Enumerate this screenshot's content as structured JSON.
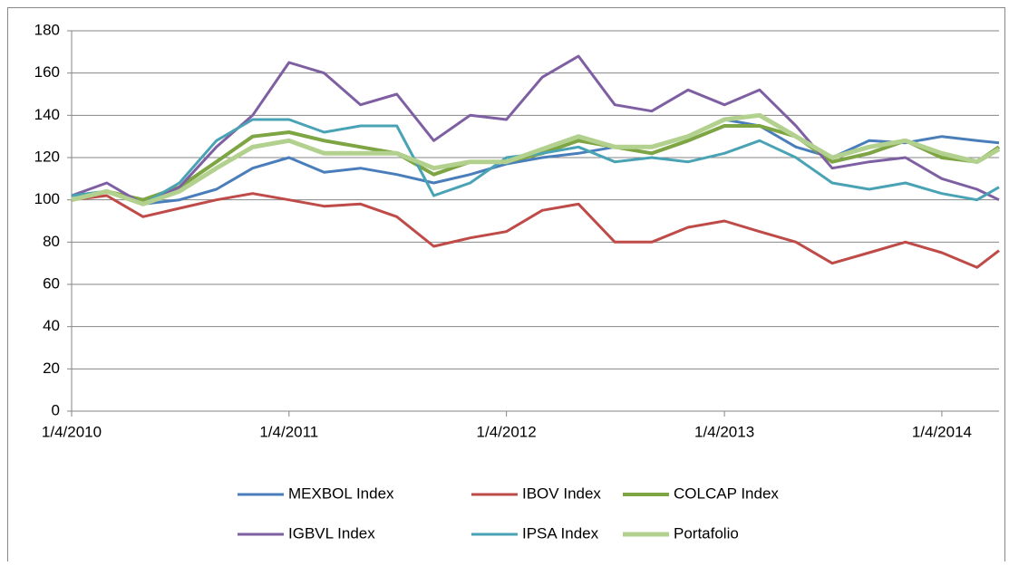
{
  "chart_data": {
    "type": "line",
    "x": [
      "2010-01-04",
      "2010-03-04",
      "2010-05-04",
      "2010-07-04",
      "2010-09-04",
      "2010-11-04",
      "2011-01-04",
      "2011-03-04",
      "2011-05-04",
      "2011-07-04",
      "2011-09-04",
      "2011-11-04",
      "2012-01-04",
      "2012-03-04",
      "2012-05-04",
      "2012-07-04",
      "2012-09-04",
      "2012-11-04",
      "2013-01-04",
      "2013-03-04",
      "2013-05-04",
      "2013-07-04",
      "2013-09-04",
      "2013-11-04",
      "2014-01-04",
      "2014-03-04",
      "2014-04-10"
    ],
    "xlim": [
      "2010-01-04",
      "2014-04-10"
    ],
    "xticks": [
      {
        "value": "2010-01-04",
        "label": "1/4/2010"
      },
      {
        "value": "2011-01-04",
        "label": "1/4/2011"
      },
      {
        "value": "2012-01-04",
        "label": "1/4/2012"
      },
      {
        "value": "2013-01-04",
        "label": "1/4/2013"
      },
      {
        "value": "2014-01-04",
        "label": "1/4/2014"
      }
    ],
    "ylim": [
      0,
      180
    ],
    "yticks": [
      0,
      20,
      40,
      60,
      80,
      100,
      120,
      140,
      160,
      180
    ],
    "grid": true,
    "legend": "bottom",
    "series": [
      {
        "name": "MEXBOL Index",
        "color": "#4a7ebb",
        "width": 3,
        "values": [
          102,
          104,
          98,
          100,
          105,
          115,
          120,
          113,
          115,
          112,
          108,
          112,
          117,
          120,
          122,
          125,
          125,
          130,
          138,
          135,
          125,
          120,
          128,
          127,
          130,
          128,
          127
        ]
      },
      {
        "name": "IBOV Index",
        "color": "#be4b48",
        "width": 3,
        "values": [
          100,
          102,
          92,
          96,
          100,
          103,
          100,
          97,
          98,
          92,
          78,
          82,
          85,
          95,
          98,
          80,
          80,
          87,
          90,
          85,
          80,
          70,
          75,
          80,
          75,
          68,
          76
        ]
      },
      {
        "name": "COLCAP Index",
        "color": "#7ea543",
        "width": 4,
        "values": [
          100,
          104,
          100,
          106,
          118,
          130,
          132,
          128,
          125,
          122,
          112,
          118,
          118,
          122,
          128,
          125,
          122,
          128,
          135,
          135,
          130,
          118,
          122,
          128,
          120,
          118,
          125
        ]
      },
      {
        "name": "IGBVL Index",
        "color": "#7e5fa2",
        "width": 3,
        "values": [
          102,
          108,
          98,
          106,
          125,
          140,
          165,
          160,
          145,
          150,
          128,
          140,
          138,
          158,
          168,
          145,
          142,
          152,
          145,
          152,
          135,
          115,
          118,
          120,
          110,
          105,
          100
        ]
      },
      {
        "name": "IPSA Index",
        "color": "#4aa3b5",
        "width": 3,
        "values": [
          102,
          104,
          98,
          108,
          128,
          138,
          138,
          132,
          135,
          135,
          102,
          108,
          120,
          122,
          125,
          118,
          120,
          118,
          122,
          128,
          120,
          108,
          105,
          108,
          103,
          100,
          106
        ]
      },
      {
        "name": "Portafolio",
        "color": "#b3d18e",
        "width": 5,
        "values": [
          100,
          104,
          98,
          104,
          115,
          125,
          128,
          122,
          122,
          122,
          115,
          118,
          118,
          124,
          130,
          125,
          125,
          130,
          138,
          140,
          130,
          120,
          125,
          128,
          122,
          118,
          124
        ]
      }
    ]
  }
}
